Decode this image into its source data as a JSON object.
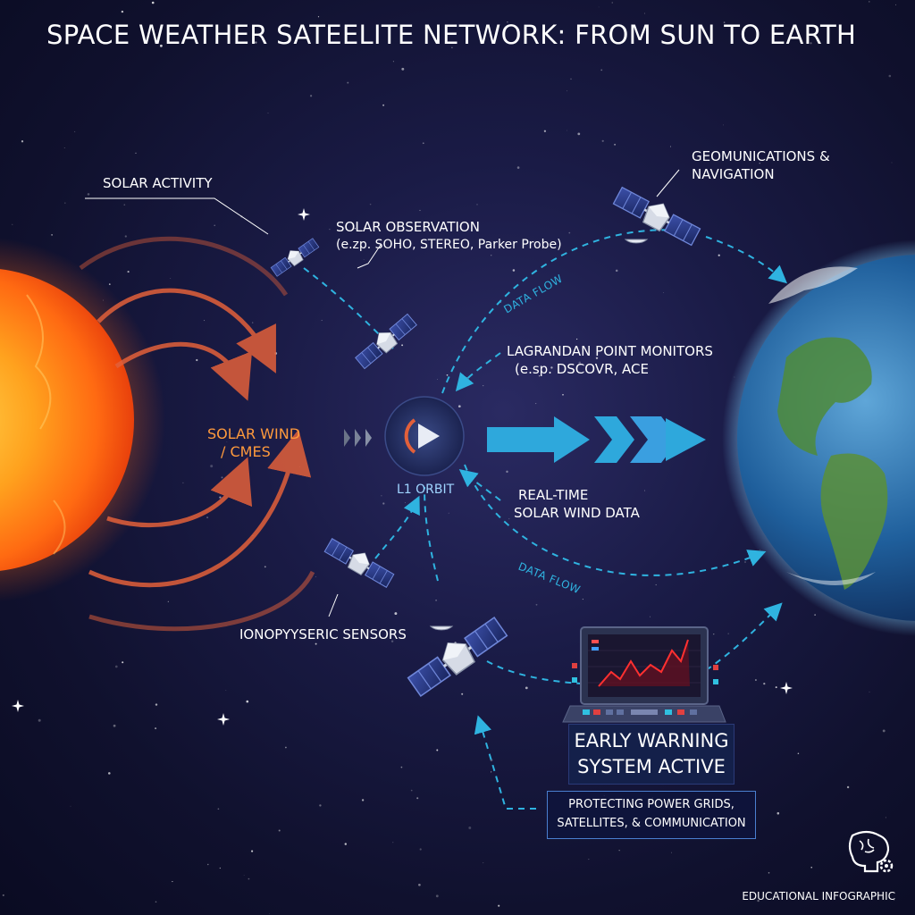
{
  "title": "SPACE WEATHER SATEELITE NETWORK: FROM SUN TO EARTH",
  "labels": {
    "solar_activity": "SOLAR ACTIVITY",
    "solar_observation_l1": "SOLAR OBSERVATION",
    "solar_observation_l2": "(e.zp. SOHO, STEREO, Parker Probe)",
    "geo_l1": "GEOMUNICATIONS &",
    "geo_l2": "NAVIGATION",
    "lagrange_l1": "LAGRANDAN POINT MONITORS",
    "lagrange_l2": "(e.sp. DSCOVR, ACE",
    "solar_wind_l1": "SOLAR WIND",
    "solar_wind_l2": "/ CMES",
    "l1_orbit": "L1 ORBIT",
    "realtime_l1": "REAL-TIME",
    "realtime_l2": "SOLAR WIND DATA",
    "data_flow_1": "DATA FLOW",
    "data_flow_2": "DATA FLOW",
    "iono": "IONOPYYSERIC SENSORS",
    "ews_l1": "EARLY WARNING",
    "ews_l2": "SYSTEM ACTIVE",
    "protect_l1": "PROTECTING POWER GRIDS,",
    "protect_l2": "SATELLITES, & COMMUNICATION",
    "footer": "EDUCATIONAL INFOGRAPHIC"
  },
  "icons": [
    "sun",
    "earth",
    "satellite-icon",
    "l1-monitor-icon",
    "monitor-console-icon",
    "brain-gear-icon"
  ],
  "colors": {
    "background": "#141538",
    "sun_core": "#ffb020",
    "sun_edge": "#ff5a10",
    "flow_arrow": "#2fb3e0",
    "solar_wind_arrow": "#e2603a",
    "chart_line": "#ff3030"
  }
}
